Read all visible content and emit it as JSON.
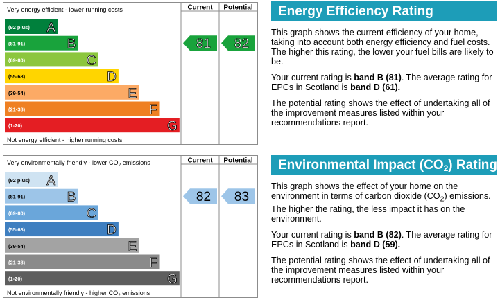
{
  "chart_data": [
    {
      "type": "bar",
      "top_label": "Very energy efficient - lower running costs",
      "bottom_label": "Not energy efficient - higher running costs",
      "col_current": "Current",
      "col_potential": "Potential",
      "bands": [
        {
          "range": "(92 plus)",
          "letter": "A",
          "color": "#00803c",
          "range_color": "#ffffff"
        },
        {
          "range": "(81-91)",
          "letter": "B",
          "color": "#19a33c",
          "range_color": "#ffffff"
        },
        {
          "range": "(69-80)",
          "letter": "C",
          "color": "#8cc63e",
          "range_color": "#ffffff"
        },
        {
          "range": "(55-68)",
          "letter": "D",
          "color": "#ffd500",
          "range_color": "#000000"
        },
        {
          "range": "(39-54)",
          "letter": "E",
          "color": "#fcaa65",
          "range_color": "#000000"
        },
        {
          "range": "(21-38)",
          "letter": "F",
          "color": "#ef8023",
          "range_color": "#ffffff"
        },
        {
          "range": "(1-20)",
          "letter": "G",
          "color": "#e41e23",
          "range_color": "#ffffff"
        }
      ],
      "current": 81,
      "potential": 82,
      "arrow_color_current": "#19a33c",
      "arrow_color_potential": "#19a33c"
    },
    {
      "type": "bar",
      "top_label_pre": "Very environmentally friendly - lower CO",
      "top_label_sub": "2",
      "top_label_post": " emissions",
      "bottom_label_pre": "Not environmentally friendly - higher CO",
      "bottom_label_sub": "2",
      "bottom_label_post": " emissions",
      "col_current": "Current",
      "col_potential": "Potential",
      "bands": [
        {
          "range": "(92 plus)",
          "letter": "A",
          "color": "#cfe3f2",
          "range_color": "#000000"
        },
        {
          "range": "(81-91)",
          "letter": "B",
          "color": "#9dc5e8",
          "range_color": "#000000"
        },
        {
          "range": "(69-80)",
          "letter": "C",
          "color": "#6aa6da",
          "range_color": "#ffffff"
        },
        {
          "range": "(55-68)",
          "letter": "D",
          "color": "#3f7fc0",
          "range_color": "#ffffff"
        },
        {
          "range": "(39-54)",
          "letter": "E",
          "color": "#a3a3a3",
          "range_color": "#000000"
        },
        {
          "range": "(21-38)",
          "letter": "F",
          "color": "#8a8a8a",
          "range_color": "#ffffff"
        },
        {
          "range": "(1-20)",
          "letter": "G",
          "color": "#5e5e5e",
          "range_color": "#ffffff"
        }
      ],
      "current": 82,
      "potential": 83,
      "arrow_color_current": "#9dc5e8",
      "arrow_color_potential": "#9dc5e8"
    }
  ],
  "energy_desc": {
    "title": "Energy Efficiency Rating",
    "p1": "This graph shows the current efficiency of your home, taking into account both energy efficiency and fuel costs. The higher this rating, the lower your fuel bills are likely to be.",
    "p2_pre": "Your current rating is ",
    "p2_b1": "band B (81)",
    "p2_mid": ". The average rating for EPCs in Scotland is ",
    "p2_b2": "band D (61).",
    "p3": "The potential rating shows the effect of undertaking all of the improvement measures listed within your recommendations report."
  },
  "env_desc": {
    "title_pre": "Environmental Impact (CO",
    "title_sub": "2",
    "title_post": ") Rating",
    "p1_pre": "This graph shows the effect of your home on the environment in terms of carbon dioxide (CO",
    "p1_sub": "2",
    "p1_post": ") emissions. The higher the rating, the less impact it has on the environment.",
    "p2_pre": "Your current rating is ",
    "p2_b1": "band B (82)",
    "p2_mid": ". The average rating for EPCs in Scotland is ",
    "p2_b2": "band D (59).",
    "p3": "The potential rating shows the effect of undertaking all of the improvement measures listed within your recommendations report."
  }
}
